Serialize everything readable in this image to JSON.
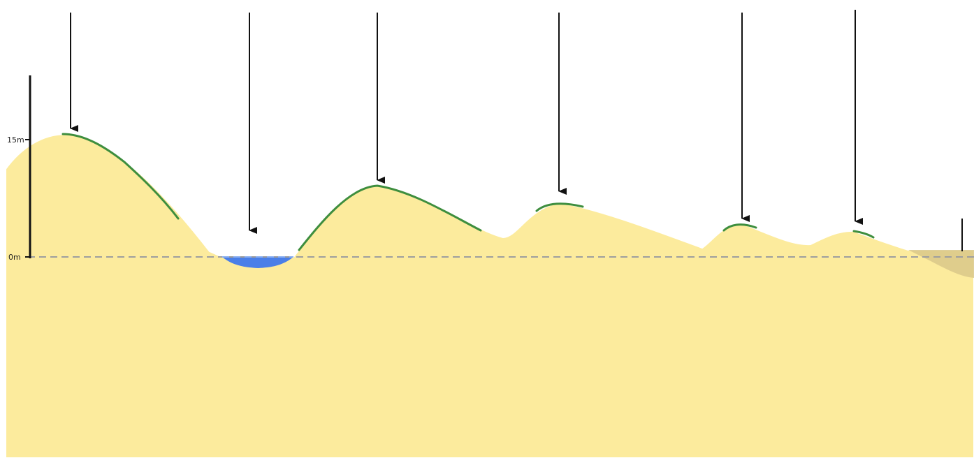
{
  "scale": {
    "label_top": "15m",
    "label_bottom": "0m"
  },
  "colors": {
    "sand": "#FCEB9D",
    "sand_outline": "#ffffff",
    "vegetation": "#3E8E3E",
    "water": "#4A7FE8",
    "sea_level_line": "#9E9E9E",
    "arrow": "#111111",
    "shoreline_shadow": "#D9C88A"
  },
  "arrow_count": 6,
  "features": [
    "dune-crest",
    "wet-slack",
    "dune-crest",
    "dune-crest",
    "dune-crest",
    "dune-crest",
    "beach"
  ]
}
